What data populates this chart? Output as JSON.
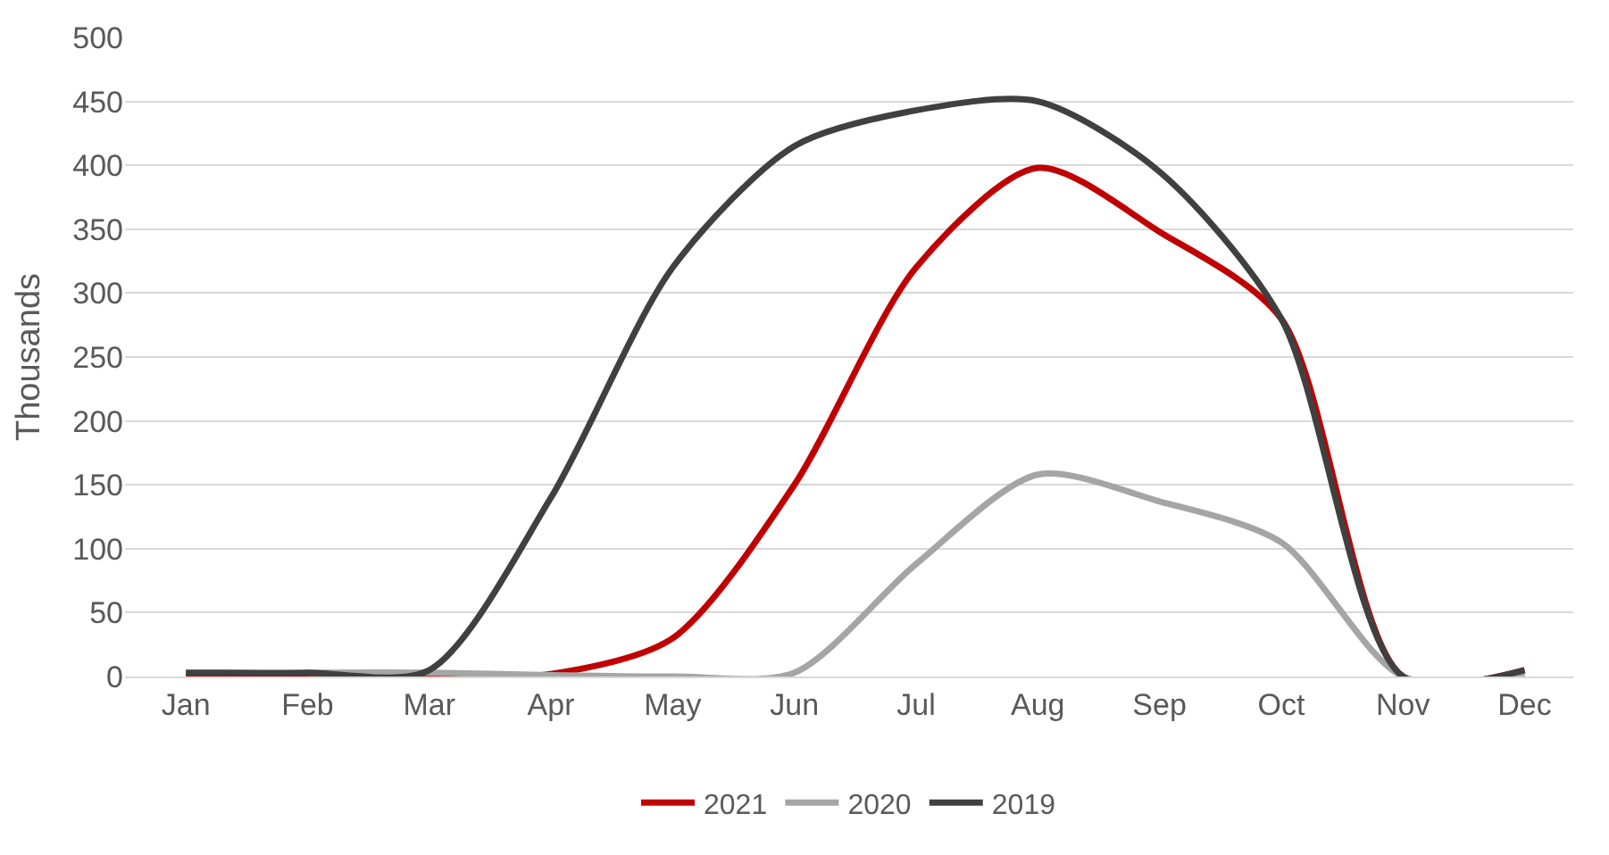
{
  "chart_data": {
    "type": "line",
    "ylabel": "Thousands",
    "categories": [
      "Jan",
      "Feb",
      "Mar",
      "Apr",
      "May",
      "Jun",
      "Jul",
      "Aug",
      "Sep",
      "Oct",
      "Nov",
      "Dec"
    ],
    "series": [
      {
        "name": "2021",
        "color": "#c00000",
        "values": [
          0,
          0,
          0,
          2,
          30,
          150,
          320,
          398,
          348,
          280,
          0,
          5
        ]
      },
      {
        "name": "2020",
        "color": "#a5a5a5",
        "values": [
          null,
          3,
          3,
          1,
          0,
          3,
          88,
          158,
          137,
          105,
          0,
          2
        ]
      },
      {
        "name": "2019",
        "color": "#404040",
        "values": [
          3,
          3,
          5,
          140,
          320,
          415,
          443,
          450,
          395,
          280,
          0,
          5
        ]
      }
    ],
    "ylim": [
      0,
      500
    ],
    "yticks": [
      0,
      50,
      100,
      150,
      200,
      250,
      300,
      350,
      400,
      450,
      500
    ],
    "grid": "y",
    "legend": "bottom",
    "marker": "none",
    "line_style": "solid"
  }
}
